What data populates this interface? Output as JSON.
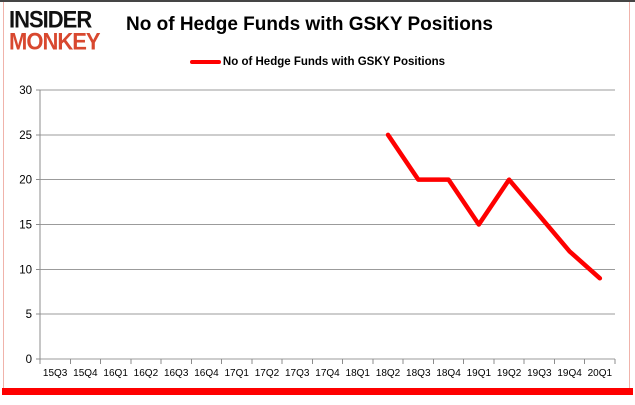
{
  "header": {
    "logo_line1": "INSIDER",
    "logo_line2": "MONKEY",
    "title": "No of Hedge Funds with GSKY Positions"
  },
  "legend": {
    "label": "No of Hedge Funds with GSKY Positions",
    "line_color": "#FE0000"
  },
  "chart_data": {
    "type": "line",
    "title": "No of Hedge Funds with GSKY Positions",
    "categories": [
      "15Q3",
      "15Q4",
      "16Q1",
      "16Q2",
      "16Q3",
      "16Q4",
      "17Q1",
      "17Q2",
      "17Q3",
      "17Q4",
      "18Q1",
      "18Q2",
      "18Q3",
      "18Q4",
      "19Q1",
      "19Q2",
      "19Q3",
      "19Q4",
      "20Q1"
    ],
    "series": [
      {
        "name": "No of Hedge Funds with GSKY Positions",
        "color": "#FE0000",
        "values": [
          null,
          null,
          null,
          null,
          null,
          null,
          null,
          null,
          null,
          null,
          null,
          25,
          20,
          20,
          15,
          20,
          16,
          12,
          9
        ]
      }
    ],
    "ylim": [
      0,
      30
    ],
    "yticks": [
      0,
      5,
      10,
      15,
      20,
      25,
      30
    ],
    "grid": true,
    "legend_position": "top",
    "xlabel": "",
    "ylabel": ""
  },
  "colors": {
    "line": "#FE0000",
    "logo_black": "#111111",
    "logo_red": "#D8482F",
    "grid": "#9B9B9B",
    "axis": "#8C8C8C",
    "tick_text": "#000000",
    "border_pink": "#F0B3AB",
    "top_border": "#454545",
    "bottom_bar": "#FE0000"
  }
}
